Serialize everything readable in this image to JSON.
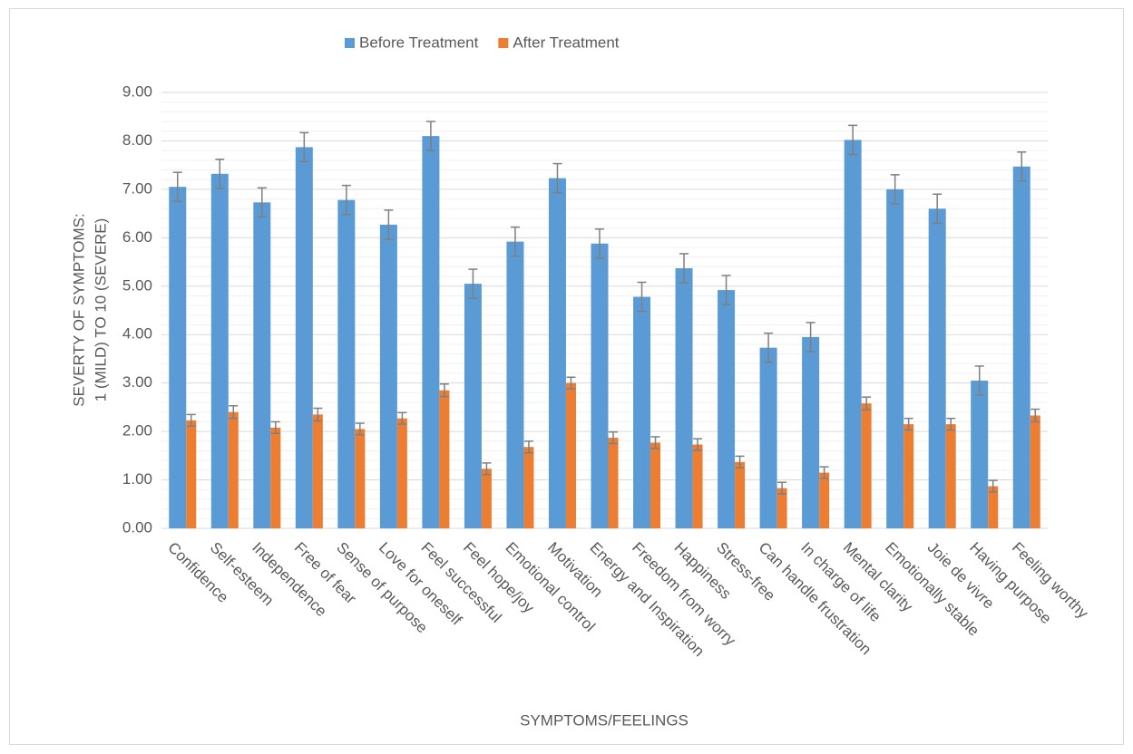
{
  "chart_data": {
    "type": "bar",
    "x_label": "SYMPTOMS/FEELINGS",
    "y_label": [
      "SEVERTY OF SYMPTOMS:",
      "1 (MILD) TO 10 (SEVERE)"
    ],
    "categories": [
      "Confidence",
      "Self-esteem",
      "Independence",
      "Free of fear",
      "Sense of purpose",
      "Love for oneself",
      "Feel successful",
      "Feel hope/joy",
      "Emotional control",
      "Motivation",
      "Energy and Inspiration",
      "Freedom from worry",
      "Happiness",
      "Stress-free",
      "Can handle frustration",
      "In charge of life",
      "Mental clarity",
      "Emotionally stable",
      "Joie de vivre",
      "Having purpose",
      "Feeling worthy"
    ],
    "series": [
      {
        "name": "Before Treatment",
        "color": "#5b9bd5",
        "values": [
          7.05,
          7.32,
          6.73,
          7.87,
          6.78,
          6.27,
          8.1,
          5.05,
          5.92,
          7.23,
          5.88,
          4.78,
          5.37,
          4.92,
          3.73,
          3.95,
          8.02,
          7.0,
          6.6,
          3.05,
          7.47
        ],
        "errors": [
          0.3,
          0.3,
          0.3,
          0.3,
          0.3,
          0.3,
          0.3,
          0.3,
          0.3,
          0.3,
          0.3,
          0.3,
          0.3,
          0.3,
          0.3,
          0.3,
          0.3,
          0.3,
          0.3,
          0.3,
          0.3
        ]
      },
      {
        "name": "After Treatment",
        "color": "#ed7d31",
        "values": [
          2.23,
          2.4,
          2.08,
          2.35,
          2.05,
          2.27,
          2.85,
          1.23,
          1.68,
          3.0,
          1.87,
          1.77,
          1.73,
          1.37,
          0.83,
          1.15,
          2.58,
          2.15,
          2.15,
          0.87,
          2.33
        ],
        "errors": [
          0.12,
          0.13,
          0.12,
          0.13,
          0.12,
          0.12,
          0.13,
          0.12,
          0.12,
          0.12,
          0.12,
          0.12,
          0.12,
          0.12,
          0.12,
          0.12,
          0.13,
          0.12,
          0.12,
          0.12,
          0.13
        ]
      }
    ],
    "error_color": "#7f7f7f",
    "ylim": [
      0,
      9
    ],
    "yticks": [
      {
        "value": 0,
        "label": "0.00"
      },
      {
        "value": 1,
        "label": "1.00"
      },
      {
        "value": 2,
        "label": "2.00"
      },
      {
        "value": 3,
        "label": "3.00"
      },
      {
        "value": 4,
        "label": "4.00"
      },
      {
        "value": 5,
        "label": "5.00"
      },
      {
        "value": 6,
        "label": "6.00"
      },
      {
        "value": 7,
        "label": "7.00"
      },
      {
        "value": 8,
        "label": "8.00"
      },
      {
        "value": 9,
        "label": "9.00"
      }
    ],
    "grid": true,
    "legend": "top"
  }
}
